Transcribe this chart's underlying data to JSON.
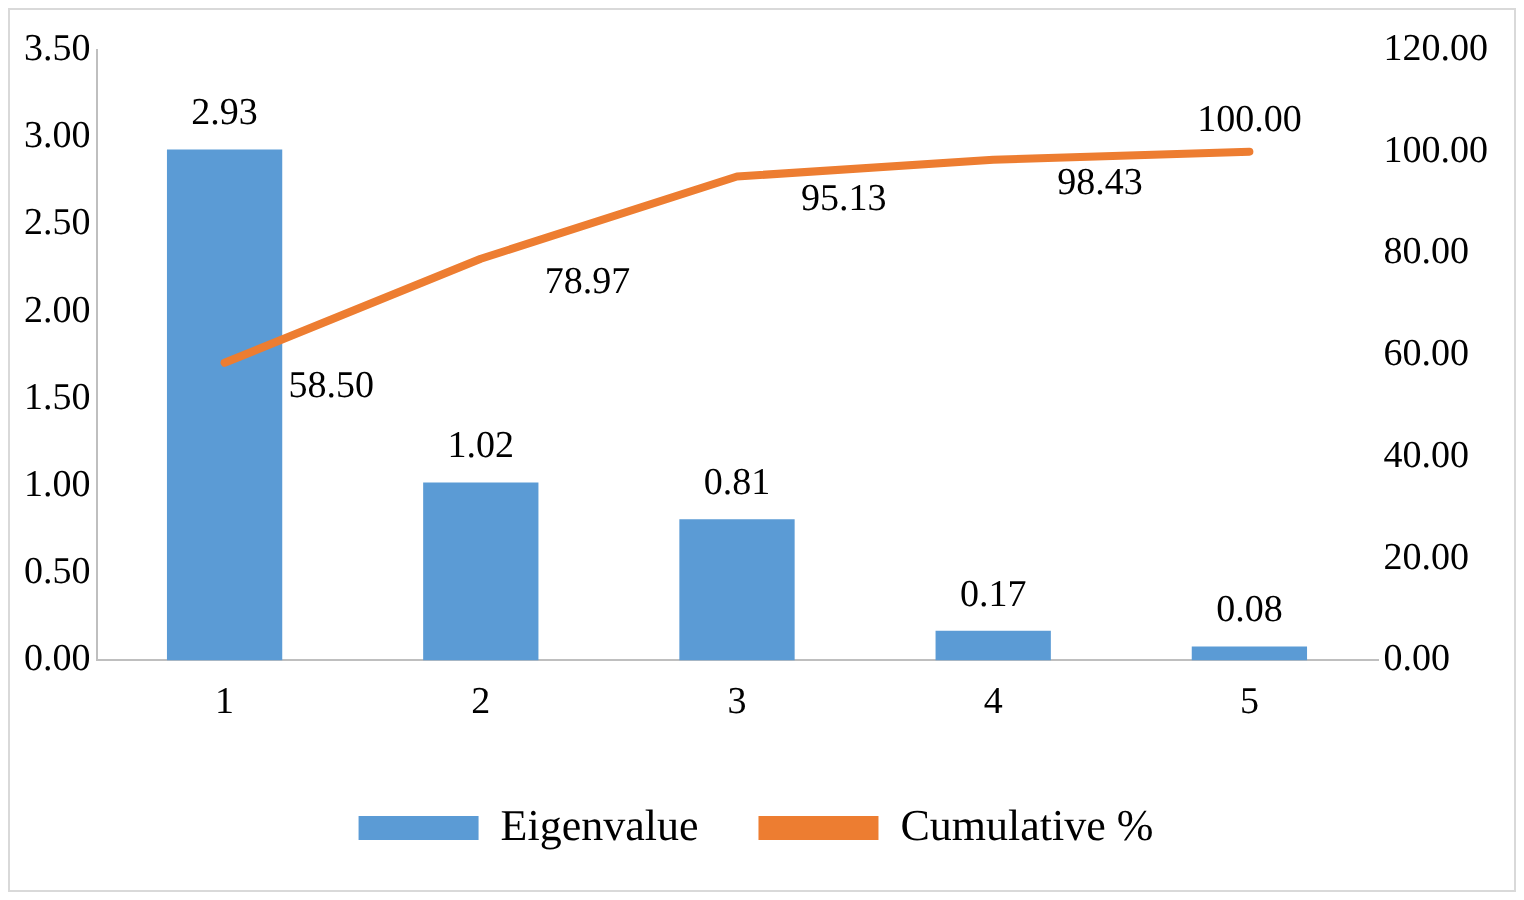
{
  "chart_data": {
    "type": "bar",
    "categories": [
      "1",
      "2",
      "3",
      "4",
      "5"
    ],
    "series": [
      {
        "name": "Eigenvalue",
        "color": "#5b9bd5",
        "values": [
          2.93,
          1.02,
          0.81,
          0.17,
          0.08
        ],
        "value_labels": [
          "2.93",
          "1.02",
          "0.81",
          "0.17",
          "0.08"
        ]
      },
      {
        "name": "Cumulative %",
        "type": "line",
        "axis": "y2",
        "color": "#ed7d31",
        "values": [
          58.5,
          78.97,
          95.13,
          98.43,
          100
        ],
        "value_labels": [
          "58.50",
          "78.97",
          "95.13",
          "98.43",
          "100.00"
        ]
      }
    ],
    "ylim": [
      0,
      3.5
    ],
    "yticks": [
      {
        "value": 0,
        "label": "0.00"
      },
      {
        "value": 0.5,
        "label": "0.50"
      },
      {
        "value": 1,
        "label": "1.00"
      },
      {
        "value": 1.5,
        "label": "1.50"
      },
      {
        "value": 2,
        "label": "2.00"
      },
      {
        "value": 2.5,
        "label": "2.50"
      },
      {
        "value": 3,
        "label": "3.00"
      },
      {
        "value": 3.5,
        "label": "3.50"
      }
    ],
    "y2lim": [
      0,
      120
    ],
    "y2ticks": [
      {
        "value": 0,
        "label": "0.00"
      },
      {
        "value": 20,
        "label": "20.00"
      },
      {
        "value": 40,
        "label": "40.00"
      },
      {
        "value": 60,
        "label": "60.00"
      },
      {
        "value": 80,
        "label": "80.00"
      },
      {
        "value": 100,
        "label": "100.00"
      },
      {
        "value": 120,
        "label": "120.00"
      }
    ],
    "grid": false,
    "legend": "bottom",
    "marker": "none"
  }
}
